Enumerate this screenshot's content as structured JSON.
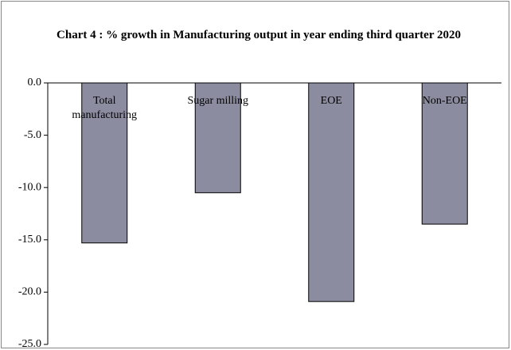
{
  "chart_data": {
    "type": "bar",
    "title": "Chart 4 : % growth in Manufacturing  output  in year ending third quarter 2020",
    "categories": [
      "Total manufacturing",
      "Sugar milling",
      "EOE",
      "Non-EOE"
    ],
    "values": [
      -15.3,
      -10.5,
      -20.9,
      -13.5
    ],
    "color": "#8c8ca0",
    "ylim": [
      -25,
      0
    ],
    "yticks": [
      {
        "value": 0,
        "label": "0.0"
      },
      {
        "value": -5,
        "label": "-5.0"
      },
      {
        "value": -10,
        "label": "-10.0"
      },
      {
        "value": -15,
        "label": "-15.0"
      },
      {
        "value": -20,
        "label": "-20.0"
      },
      {
        "value": -25,
        "label": "-25.0"
      }
    ],
    "grid": false
  }
}
